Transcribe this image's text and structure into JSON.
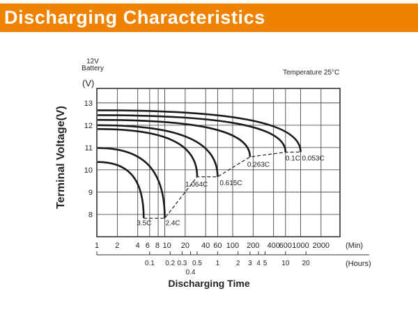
{
  "header": {
    "title": "Discharging Characteristics"
  },
  "colors": {
    "header_bg": "#ef8200",
    "header_text": "#ffffff",
    "lines": "#1a1a1a"
  },
  "chart_data": {
    "type": "line",
    "title": "",
    "battery_label": [
      "12V",
      "Battery"
    ],
    "temperature_label": "Temperature 25°C",
    "ylabel": "Terminal Voltage(V)",
    "y_unit": "(V)",
    "xlabel": "Discharging Time",
    "x_scale": "log",
    "x_unit_min": "(Min)",
    "x_unit_hours": "(Hours)",
    "xlim_min": [
      1,
      3800
    ],
    "ylim": [
      7,
      13.65
    ],
    "grid": true,
    "y_ticks": [
      8,
      9,
      10,
      11,
      12,
      13
    ],
    "x_ticks_min": [
      1,
      2,
      4,
      6,
      8,
      10,
      20,
      40,
      60,
      100,
      200,
      400,
      600,
      1000,
      2000
    ],
    "x_ticks_hours": [
      {
        "label": "0.1",
        "hours": 0.1
      },
      {
        "label": "0.2",
        "hours": 0.2
      },
      {
        "label": "0.3",
        "hours": 0.3
      },
      {
        "label": "0.4",
        "hours": 0.4
      },
      {
        "label": "0.5",
        "hours": 0.5
      },
      {
        "label": "1",
        "hours": 1
      },
      {
        "label": "2",
        "hours": 2
      },
      {
        "label": "3",
        "hours": 3
      },
      {
        "label": "4",
        "hours": 4
      },
      {
        "label": "5",
        "hours": 5
      },
      {
        "label": "10",
        "hours": 10
      },
      {
        "label": "20",
        "hours": 20
      }
    ],
    "series": [
      {
        "name": "3.5C",
        "start_v": 10.35,
        "end_min": 4.9,
        "end_v": 7.83
      },
      {
        "name": "2.4C",
        "start_v": 10.98,
        "end_min": 10,
        "end_v": 7.83
      },
      {
        "name": "1.064C",
        "start_v": 11.83,
        "end_min": 30,
        "end_v": 9.69
      },
      {
        "name": "0.615C",
        "start_v": 12.0,
        "end_min": 60,
        "end_v": 9.69
      },
      {
        "name": "0.263C",
        "start_v": 12.24,
        "end_min": 180,
        "end_v": 10.58
      },
      {
        "name": "0.1C",
        "start_v": 12.45,
        "end_min": 600,
        "end_v": 10.79
      },
      {
        "name": "0.053C",
        "start_v": 12.67,
        "end_min": 1000,
        "end_v": 10.8
      }
    ],
    "cutoff_line": {
      "style": "dashed",
      "points": [
        [
          4.9,
          7.83
        ],
        [
          10,
          7.83
        ],
        [
          30,
          9.69
        ],
        [
          60,
          9.69
        ],
        [
          180,
          10.58
        ],
        [
          600,
          10.79
        ],
        [
          1000,
          10.8
        ]
      ]
    }
  }
}
